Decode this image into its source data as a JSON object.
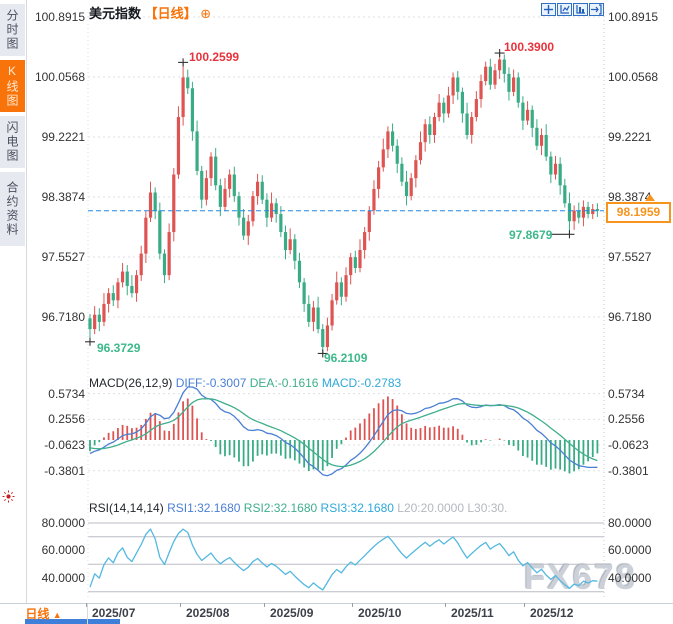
{
  "sidebar": {
    "tabs": [
      {
        "label": "分时图",
        "active": false
      },
      {
        "label": "K线图",
        "active": true
      },
      {
        "label": "闪电图",
        "active": false
      },
      {
        "label": "合约资料",
        "active": false
      }
    ]
  },
  "header": {
    "title": "美元指数",
    "period": "【日线】",
    "add_icon": "⊕"
  },
  "axes": {
    "main": [
      "100.8915",
      "100.0568",
      "99.2221",
      "98.3874",
      "97.5527",
      "96.7180"
    ],
    "macd": [
      "0.5734",
      "0.2556",
      "-0.0623",
      "-0.3801"
    ],
    "rsi": [
      "80.0000",
      "60.0000",
      "40.0000"
    ]
  },
  "annotations": {
    "high_jul": "100.2599",
    "high_nov": "100.3900",
    "low_jul": "96.3729",
    "low_sep": "96.2109",
    "low_dec": "97.8679"
  },
  "price_box": {
    "value": "98.1959"
  },
  "macd_header": {
    "name": "MACD(26,12,9)",
    "diff": "DIFF:-0.3007",
    "dea": "DEA:-0.1616",
    "macd": "MACD:-0.2783"
  },
  "rsi_header": {
    "name": "RSI(14,14,14)",
    "rsi1": "RSI1:32.1680",
    "rsi2": "RSI2:32.1680",
    "rsi3": "RSI3:32.1680",
    "l20": "L20:20.0000",
    "l30": "L30:30."
  },
  "bottom": {
    "period_tab": "日线",
    "x_labels": [
      "2025/07",
      "2025/08",
      "2025/09",
      "2025/10",
      "2025/11",
      "2025/12"
    ]
  },
  "watermark": "FX678",
  "colors": {
    "up": "#de5452",
    "down": "#39ac85",
    "accent_orange": "#f8730a",
    "price_line": "#1e88e5",
    "diff_blue": "#4a7fd4",
    "dea_green": "#3fae8c",
    "macd_cyan": "#2ea8d8",
    "rsi_line": "#54b8e0",
    "annotation_red": "#e8323c",
    "annotation_green": "#3cb98c",
    "grid": "#dcdfe5"
  },
  "chart_data": {
    "type": "candlestick",
    "symbol": "美元指数",
    "period": "日线",
    "x_axis": {
      "labels": [
        "2025/07",
        "2025/08",
        "2025/09",
        "2025/10",
        "2025/11",
        "2025/12"
      ],
      "label_indices": [
        0,
        21,
        39,
        58,
        78,
        95
      ]
    },
    "y_axis": {
      "ticks": [
        100.8915,
        100.0568,
        99.2221,
        98.3874,
        97.5527,
        96.718
      ]
    },
    "current_price": 98.1959,
    "key_points": {
      "jul_high": {
        "value": 100.2599,
        "index": 20
      },
      "nov_high": {
        "value": 100.39,
        "index": 88
      },
      "jul_low": {
        "value": 96.3729,
        "index": 0
      },
      "sep_low": {
        "value": 96.2109,
        "index": 50
      },
      "dec_low": {
        "value": 97.8679,
        "index": 103
      }
    },
    "candles": [
      [
        96.7,
        96.76,
        96.3729,
        96.55
      ],
      [
        96.55,
        96.87,
        96.48,
        96.75
      ],
      [
        96.75,
        96.84,
        96.52,
        96.65
      ],
      [
        96.65,
        97.05,
        96.59,
        96.9
      ],
      [
        96.9,
        97.12,
        96.78,
        97.05
      ],
      [
        97.05,
        97.16,
        96.87,
        96.95
      ],
      [
        96.95,
        97.26,
        96.84,
        97.2
      ],
      [
        97.2,
        97.47,
        97.13,
        97.35
      ],
      [
        97.35,
        97.44,
        97.02,
        97.15
      ],
      [
        97.15,
        97.3,
        96.99,
        97.05
      ],
      [
        97.05,
        97.37,
        96.93,
        97.3
      ],
      [
        97.3,
        97.71,
        97.22,
        97.6
      ],
      [
        97.6,
        98.19,
        97.47,
        98.1
      ],
      [
        98.1,
        98.6,
        98.04,
        98.45
      ],
      [
        98.45,
        98.52,
        98.08,
        98.2
      ],
      [
        98.2,
        98.31,
        97.52,
        97.6
      ],
      [
        97.6,
        97.66,
        97.19,
        97.3
      ],
      [
        97.3,
        98.02,
        97.23,
        97.9
      ],
      [
        97.9,
        98.79,
        97.77,
        98.7
      ],
      [
        98.7,
        99.65,
        98.64,
        99.5
      ],
      [
        99.5,
        100.2599,
        99.38,
        100.05
      ],
      [
        100.05,
        100.16,
        99.82,
        99.9
      ],
      [
        99.9,
        99.99,
        99.17,
        99.3
      ],
      [
        99.3,
        99.45,
        98.69,
        98.75
      ],
      [
        98.75,
        98.82,
        98.23,
        98.35
      ],
      [
        98.35,
        98.76,
        98.27,
        98.65
      ],
      [
        98.65,
        99.01,
        98.54,
        98.95
      ],
      [
        98.95,
        99.07,
        98.48,
        98.55
      ],
      [
        98.55,
        98.64,
        98.12,
        98.25
      ],
      [
        98.25,
        98.65,
        98.19,
        98.5
      ],
      [
        98.5,
        98.77,
        98.38,
        98.7
      ],
      [
        98.7,
        98.81,
        98.32,
        98.4
      ],
      [
        98.4,
        98.46,
        97.99,
        98.1
      ],
      [
        98.1,
        98.22,
        97.79,
        97.85
      ],
      [
        97.85,
        98.14,
        97.72,
        98.05
      ],
      [
        98.05,
        98.47,
        97.98,
        98.4
      ],
      [
        98.4,
        98.71,
        98.28,
        98.6
      ],
      [
        98.6,
        98.69,
        98.29,
        98.35
      ],
      [
        98.35,
        98.44,
        97.97,
        98.1
      ],
      [
        98.1,
        98.45,
        98.04,
        98.3
      ],
      [
        98.3,
        98.37,
        98.03,
        98.15
      ],
      [
        98.15,
        98.26,
        97.83,
        97.9
      ],
      [
        97.9,
        97.99,
        97.52,
        97.65
      ],
      [
        97.65,
        97.95,
        97.59,
        97.8
      ],
      [
        97.8,
        97.87,
        97.38,
        97.5
      ],
      [
        97.5,
        97.61,
        97.12,
        97.2
      ],
      [
        97.2,
        97.26,
        96.79,
        96.9
      ],
      [
        96.9,
        97.02,
        96.58,
        96.65
      ],
      [
        96.65,
        96.94,
        96.52,
        96.85
      ],
      [
        96.85,
        97.0,
        96.49,
        96.55
      ],
      [
        96.55,
        96.62,
        96.2109,
        96.3
      ],
      [
        96.3,
        96.71,
        96.24,
        96.6
      ],
      [
        96.6,
        97.04,
        96.53,
        96.95
      ],
      [
        96.95,
        97.35,
        96.89,
        97.2
      ],
      [
        97.2,
        97.27,
        96.88,
        97.0
      ],
      [
        97.0,
        97.41,
        96.93,
        97.3
      ],
      [
        97.3,
        97.61,
        97.17,
        97.55
      ],
      [
        97.55,
        97.64,
        97.33,
        97.4
      ],
      [
        97.4,
        97.8,
        97.34,
        97.65
      ],
      [
        97.65,
        97.97,
        97.53,
        97.9
      ],
      [
        97.9,
        98.26,
        97.78,
        98.2
      ],
      [
        98.2,
        98.62,
        98.14,
        98.5
      ],
      [
        98.5,
        98.89,
        98.37,
        98.8
      ],
      [
        98.8,
        99.2,
        98.74,
        99.05
      ],
      [
        99.05,
        99.37,
        98.93,
        99.3
      ],
      [
        99.3,
        99.41,
        99.02,
        99.1
      ],
      [
        99.1,
        99.19,
        98.72,
        98.85
      ],
      [
        98.85,
        98.94,
        98.54,
        98.6
      ],
      [
        98.6,
        98.75,
        98.27,
        98.4
      ],
      [
        98.4,
        98.72,
        98.34,
        98.65
      ],
      [
        98.65,
        98.97,
        98.52,
        98.9
      ],
      [
        98.9,
        99.3,
        98.84,
        99.15
      ],
      [
        99.15,
        99.47,
        99.02,
        99.4
      ],
      [
        99.4,
        99.51,
        99.13,
        99.25
      ],
      [
        99.25,
        99.56,
        99.14,
        99.5
      ],
      [
        99.5,
        99.82,
        99.44,
        99.7
      ],
      [
        99.7,
        99.77,
        99.42,
        99.55
      ],
      [
        99.55,
        99.92,
        99.49,
        99.8
      ],
      [
        99.8,
        100.12,
        99.68,
        100.05
      ],
      [
        100.05,
        100.14,
        99.74,
        99.85
      ],
      [
        99.85,
        99.91,
        99.42,
        99.55
      ],
      [
        99.55,
        99.7,
        99.19,
        99.25
      ],
      [
        99.25,
        99.57,
        99.13,
        99.5
      ],
      [
        99.5,
        99.86,
        99.44,
        99.75
      ],
      [
        99.75,
        100.09,
        99.63,
        100.0
      ],
      [
        100.0,
        100.27,
        99.94,
        100.2
      ],
      [
        100.2,
        100.31,
        99.88,
        99.95
      ],
      [
        99.95,
        100.24,
        99.89,
        100.15
      ],
      [
        100.15,
        100.39,
        100.03,
        100.3
      ],
      [
        100.3,
        100.37,
        99.98,
        100.1
      ],
      [
        100.1,
        100.19,
        99.73,
        99.85
      ],
      [
        99.85,
        100.16,
        99.79,
        100.05
      ],
      [
        100.05,
        100.12,
        99.63,
        99.7
      ],
      [
        99.7,
        99.79,
        99.32,
        99.45
      ],
      [
        99.45,
        99.72,
        99.39,
        99.6
      ],
      [
        99.6,
        99.66,
        99.22,
        99.35
      ],
      [
        99.35,
        99.47,
        99.04,
        99.1
      ],
      [
        99.1,
        99.34,
        98.97,
        99.25
      ],
      [
        99.25,
        99.4,
        98.89,
        98.95
      ],
      [
        98.95,
        99.02,
        98.58,
        98.7
      ],
      [
        98.7,
        98.96,
        98.63,
        98.85
      ],
      [
        98.85,
        98.94,
        98.42,
        98.55
      ],
      [
        98.55,
        98.64,
        98.24,
        98.3
      ],
      [
        98.3,
        98.45,
        97.8679,
        98.05
      ],
      [
        98.05,
        98.27,
        97.93,
        98.2
      ],
      [
        98.2,
        98.31,
        98.02,
        98.1
      ],
      [
        98.1,
        98.34,
        97.98,
        98.25
      ],
      [
        98.25,
        98.32,
        98.09,
        98.15
      ],
      [
        98.15,
        98.29,
        98.08,
        98.22
      ],
      [
        98.22,
        98.3,
        98.11,
        98.1959
      ]
    ],
    "indicators": {
      "macd": {
        "label": "MACD(26,12,9)",
        "params": [
          26,
          12,
          9
        ],
        "diff": -0.3007,
        "dea": -0.1616,
        "macd": -0.2783,
        "y_ticks": [
          0.5734,
          0.2556,
          -0.0623,
          -0.3801
        ]
      },
      "rsi": {
        "label": "RSI(14,14,14)",
        "params": [
          14,
          14,
          14
        ],
        "rsi1": 32.168,
        "rsi2": 32.168,
        "rsi3": 32.168,
        "levels": [
          80,
          70,
          50,
          30
        ],
        "y_ticks": [
          80,
          60,
          40
        ]
      }
    }
  }
}
